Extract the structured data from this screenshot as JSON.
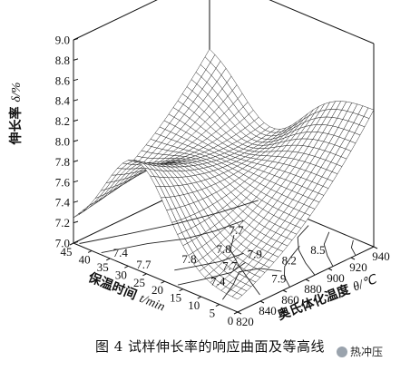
{
  "chart_data": {
    "type": "surface3d",
    "z_axis": {
      "label_main": "伸长率",
      "label_symbol": "δ",
      "label_unit": "/%",
      "ticks": [
        "9.0",
        "8.8",
        "8.6",
        "8.4",
        "8.2",
        "8.0",
        "7.8",
        "7.6",
        "7.4",
        "7.2",
        "7.0"
      ],
      "range": [
        7.0,
        9.0
      ]
    },
    "x_axis": {
      "label_main": "奥氏体化温度",
      "label_symbol": "θ",
      "label_unit": "/℃",
      "ticks": [
        "820",
        "840",
        "860",
        "880",
        "900",
        "920",
        "940"
      ],
      "range": [
        820,
        940
      ]
    },
    "y_axis": {
      "label_main": "保温时间",
      "label_symbol": "t",
      "label_unit": "/min",
      "ticks": [
        "0",
        "5",
        "10",
        "15",
        "20",
        "25",
        "30",
        "35",
        "40",
        "45"
      ],
      "range": [
        0,
        45
      ]
    },
    "contour_labels": [
      "7.4",
      "7.7",
      "7.8",
      "7.4",
      "7.7",
      "7.9",
      "8.2",
      "8.5",
      "7.8",
      "7.9",
      "7.7"
    ],
    "grid": false,
    "legend": "none"
  },
  "caption": "图 4   试样伸长率的响应曲面及等高线",
  "watermark": "热冲压"
}
